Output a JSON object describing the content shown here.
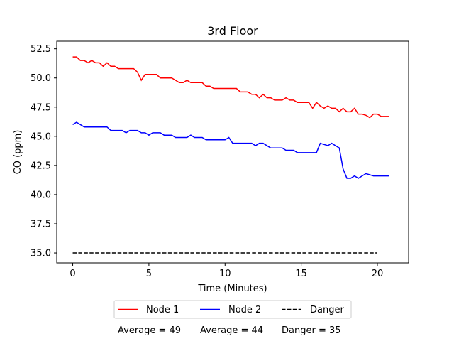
{
  "chart_data": {
    "type": "line",
    "title": "3rd Floor",
    "xlabel": "Time (Minutes)",
    "ylabel": "CO (ppm)",
    "xlim": [
      -1.05,
      22.05
    ],
    "ylim": [
      34.15,
      53.15
    ],
    "xticks": [
      0,
      5,
      10,
      15,
      20
    ],
    "yticks": [
      35.0,
      37.5,
      40.0,
      42.5,
      45.0,
      47.5,
      50.0,
      52.5
    ],
    "ytick_labels": [
      "35.0",
      "37.5",
      "40.0",
      "42.5",
      "45.0",
      "47.5",
      "50.0",
      "52.5"
    ],
    "grid": false,
    "legend_position": "below",
    "series": [
      {
        "name": "Node 1",
        "color": "#ff0000",
        "style": "solid",
        "x": [
          0.0,
          0.25,
          0.5,
          0.75,
          1.0,
          1.25,
          1.5,
          1.75,
          2.0,
          2.25,
          2.5,
          2.75,
          3.0,
          3.25,
          3.5,
          3.75,
          4.0,
          4.25,
          4.5,
          4.75,
          5.0,
          5.25,
          5.5,
          5.75,
          6.0,
          6.25,
          6.5,
          6.75,
          7.0,
          7.25,
          7.5,
          7.75,
          8.0,
          8.25,
          8.5,
          8.75,
          9.0,
          9.25,
          9.5,
          9.75,
          10.0,
          10.25,
          10.5,
          10.75,
          11.0,
          11.25,
          11.5,
          11.75,
          12.0,
          12.25,
          12.5,
          12.75,
          13.0,
          13.25,
          13.5,
          13.75,
          14.0,
          14.25,
          14.5,
          14.75,
          15.0,
          15.25,
          15.5,
          15.75,
          16.0,
          16.25,
          16.5,
          16.75,
          17.0,
          17.25,
          17.5,
          17.75,
          18.0,
          18.25,
          18.5,
          18.75,
          19.0,
          19.25,
          19.5,
          19.75,
          20.0,
          20.25,
          20.5,
          20.75
        ],
        "y": [
          51.8,
          51.8,
          51.5,
          51.5,
          51.3,
          51.5,
          51.3,
          51.3,
          51.0,
          51.3,
          51.0,
          51.0,
          50.8,
          50.8,
          50.8,
          50.8,
          50.8,
          50.5,
          49.8,
          50.3,
          50.3,
          50.3,
          50.3,
          50.0,
          50.0,
          50.0,
          50.0,
          49.8,
          49.6,
          49.6,
          49.8,
          49.6,
          49.6,
          49.6,
          49.6,
          49.3,
          49.3,
          49.1,
          49.1,
          49.1,
          49.1,
          49.1,
          49.1,
          49.1,
          48.8,
          48.8,
          48.8,
          48.6,
          48.6,
          48.3,
          48.6,
          48.3,
          48.3,
          48.1,
          48.1,
          48.1,
          48.3,
          48.1,
          48.1,
          47.9,
          47.9,
          47.9,
          47.9,
          47.4,
          47.9,
          47.6,
          47.4,
          47.6,
          47.4,
          47.4,
          47.1,
          47.4,
          47.1,
          47.1,
          47.4,
          46.9,
          46.9,
          46.8,
          46.6,
          46.9,
          46.9,
          46.7,
          46.7,
          46.7
        ]
      },
      {
        "name": "Node 2",
        "color": "#0000ff",
        "style": "solid",
        "x": [
          0.0,
          0.25,
          0.5,
          0.75,
          1.0,
          1.25,
          1.5,
          1.75,
          2.0,
          2.25,
          2.5,
          2.75,
          3.0,
          3.25,
          3.5,
          3.75,
          4.0,
          4.25,
          4.5,
          4.75,
          5.0,
          5.25,
          5.5,
          5.75,
          6.0,
          6.25,
          6.5,
          6.75,
          7.0,
          7.25,
          7.5,
          7.75,
          8.0,
          8.25,
          8.5,
          8.75,
          9.0,
          9.25,
          9.5,
          9.75,
          10.0,
          10.25,
          10.5,
          10.75,
          11.0,
          11.25,
          11.5,
          11.75,
          12.0,
          12.25,
          12.5,
          12.75,
          13.0,
          13.25,
          13.5,
          13.75,
          14.0,
          14.25,
          14.5,
          14.75,
          15.0,
          15.25,
          15.5,
          15.75,
          16.0,
          16.25,
          16.5,
          16.75,
          17.0,
          17.25,
          17.5,
          17.75,
          18.0,
          18.25,
          18.5,
          18.75,
          19.0,
          19.25,
          19.5,
          19.75,
          20.0,
          20.25,
          20.5,
          20.75
        ],
        "y": [
          46.0,
          46.2,
          46.0,
          45.8,
          45.8,
          45.8,
          45.8,
          45.8,
          45.8,
          45.8,
          45.5,
          45.5,
          45.5,
          45.5,
          45.3,
          45.5,
          45.5,
          45.5,
          45.3,
          45.3,
          45.1,
          45.3,
          45.3,
          45.3,
          45.1,
          45.1,
          45.1,
          44.9,
          44.9,
          44.9,
          44.9,
          45.1,
          44.9,
          44.9,
          44.9,
          44.7,
          44.7,
          44.7,
          44.7,
          44.7,
          44.7,
          44.9,
          44.4,
          44.4,
          44.4,
          44.4,
          44.4,
          44.4,
          44.2,
          44.4,
          44.4,
          44.2,
          44.0,
          44.0,
          44.0,
          44.0,
          43.8,
          43.8,
          43.8,
          43.6,
          43.6,
          43.6,
          43.6,
          43.6,
          43.6,
          44.4,
          44.3,
          44.2,
          44.4,
          44.2,
          44.0,
          42.2,
          41.4,
          41.4,
          41.6,
          41.4,
          41.6,
          41.8,
          41.7,
          41.6,
          41.6,
          41.6,
          41.6,
          41.6
        ]
      },
      {
        "name": "Danger",
        "color": "#000000",
        "style": "dashed",
        "x": [
          0,
          20
        ],
        "y": [
          35.0,
          35.0
        ]
      }
    ],
    "annotations": [
      "Average = 49",
      "Average = 44",
      "Danger = 35"
    ]
  }
}
